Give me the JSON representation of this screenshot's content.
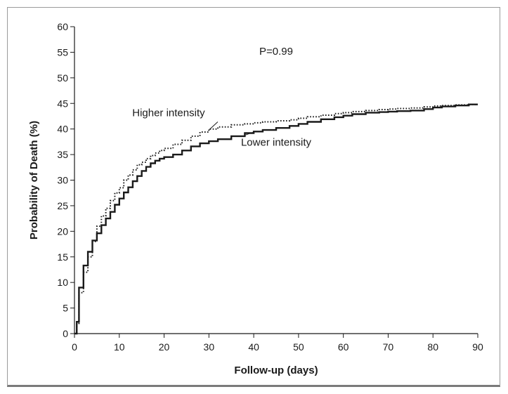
{
  "chart_data": {
    "type": "line",
    "title": "",
    "xlabel": "Follow-up (days)",
    "ylabel": "Probability of Death (%)",
    "xlim": [
      0,
      90
    ],
    "ylim": [
      0,
      60
    ],
    "xticks": [
      "0",
      "10",
      "20",
      "30",
      "40",
      "50",
      "60",
      "70",
      "80",
      "90"
    ],
    "yticks": [
      "0",
      "5",
      "10",
      "15",
      "20",
      "25",
      "30",
      "35",
      "40",
      "45",
      "50",
      "55",
      "60"
    ],
    "grid": false,
    "legend": "none",
    "annotations": [
      {
        "text": "P=0.99",
        "x": 45,
        "y": 54.5
      },
      {
        "text": "Higher intensity",
        "x": 21,
        "y": 42.5,
        "pointer_to": [
          30,
          39.8
        ]
      },
      {
        "text": "Lower intensity",
        "x": 45,
        "y": 36.7,
        "pointer_to": [
          40,
          39.4
        ]
      }
    ],
    "series": [
      {
        "name": "Higher intensity",
        "style": "dotted",
        "x": [
          0,
          0.5,
          1,
          2,
          3,
          4,
          5,
          6,
          7,
          8,
          9,
          10,
          11,
          12,
          13,
          14,
          15,
          16,
          17,
          18,
          19,
          20,
          22,
          24,
          26,
          28,
          30,
          32,
          35,
          38,
          40,
          42,
          45,
          48,
          50,
          52,
          55,
          58,
          60,
          62,
          65,
          68,
          70,
          72,
          75,
          78,
          80,
          82,
          85,
          88,
          90
        ],
        "y": [
          0,
          2,
          8,
          12,
          15,
          18,
          21,
          23,
          24.5,
          26,
          27.5,
          28.5,
          30,
          31,
          32,
          33,
          33.5,
          34.2,
          34.8,
          35.3,
          35.8,
          36.2,
          37,
          37.8,
          38.6,
          39.4,
          40,
          40.4,
          40.8,
          41,
          41.2,
          41.4,
          41.6,
          41.8,
          42.1,
          42.4,
          42.7,
          43,
          43.2,
          43.4,
          43.6,
          43.8,
          43.9,
          44,
          44.1,
          44.3,
          44.5,
          44.6,
          44.7,
          44.8,
          44.8
        ]
      },
      {
        "name": "Lower intensity",
        "style": "solid",
        "x": [
          0,
          0.5,
          1,
          2,
          3,
          4,
          5,
          6,
          7,
          8,
          9,
          10,
          11,
          12,
          13,
          14,
          15,
          16,
          17,
          18,
          19,
          20,
          22,
          24,
          26,
          28,
          30,
          32,
          35,
          38,
          40,
          42,
          45,
          48,
          50,
          52,
          55,
          58,
          60,
          62,
          65,
          68,
          70,
          72,
          75,
          78,
          80,
          82,
          85,
          88,
          90
        ],
        "y": [
          0,
          2.3,
          9,
          13.3,
          16,
          18.2,
          19.6,
          21.2,
          22.5,
          23.8,
          25.2,
          26.4,
          27.6,
          28.6,
          29.8,
          30.8,
          31.8,
          32.6,
          33.3,
          33.8,
          34.2,
          34.5,
          35,
          35.8,
          36.6,
          37.2,
          37.6,
          38,
          38.6,
          39.2,
          39.5,
          39.8,
          40.2,
          40.6,
          41,
          41.4,
          41.9,
          42.3,
          42.6,
          42.9,
          43.2,
          43.3,
          43.4,
          43.5,
          43.6,
          43.9,
          44.2,
          44.4,
          44.6,
          44.8,
          44.8
        ]
      }
    ]
  }
}
